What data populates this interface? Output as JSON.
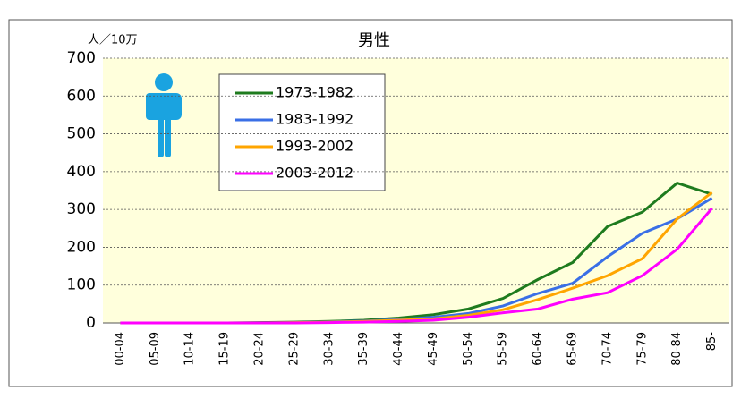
{
  "chart_data": {
    "type": "line",
    "title": "男性",
    "y_label": "人／10万",
    "categories": [
      "00-04",
      "05-09",
      "10-14",
      "15-19",
      "20-24",
      "25-29",
      "30-34",
      "35-39",
      "40-44",
      "45-49",
      "50-54",
      "55-59",
      "60-64",
      "65-69",
      "70-74",
      "75-79",
      "80-84",
      "85-"
    ],
    "series": [
      {
        "name": "1973-1982",
        "color": "#1e7b1e",
        "values": [
          0,
          0,
          0,
          0,
          1,
          2,
          4,
          7,
          13,
          22,
          37,
          65,
          115,
          160,
          255,
          293,
          370,
          340
        ]
      },
      {
        "name": "1983-1992",
        "color": "#3a6fe6",
        "values": [
          0,
          0,
          0,
          0,
          0,
          1,
          3,
          5,
          9,
          15,
          25,
          45,
          78,
          105,
          175,
          237,
          275,
          330
        ]
      },
      {
        "name": "1993-2002",
        "color": "#ffa500",
        "values": [
          0,
          0,
          0,
          0,
          0,
          1,
          2,
          4,
          7,
          11,
          20,
          35,
          62,
          92,
          125,
          170,
          275,
          345
        ]
      },
      {
        "name": "2003-2012",
        "color": "#ff00ff",
        "values": [
          0,
          0,
          0,
          0,
          0,
          0,
          1,
          2,
          4,
          7,
          15,
          27,
          37,
          63,
          80,
          125,
          195,
          303
        ]
      }
    ],
    "ylim": [
      0,
      700
    ],
    "yticks": [
      0,
      100,
      200,
      300,
      400,
      500,
      600,
      700
    ],
    "grid": true
  }
}
